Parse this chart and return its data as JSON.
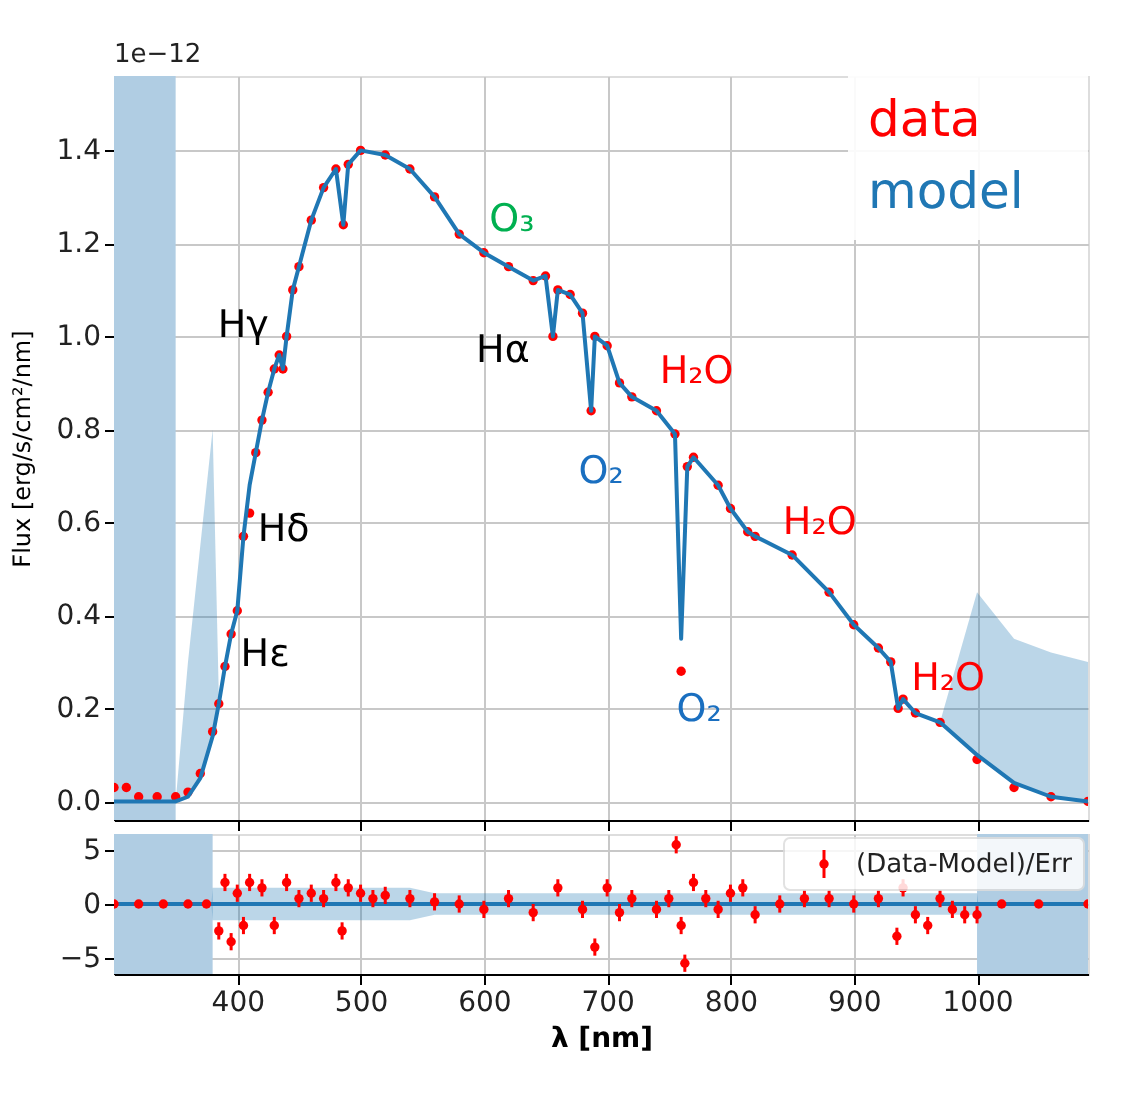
{
  "chart_data": [
    {
      "type": "scatter",
      "ylabel": "Flux [erg/s/cm²/nm]",
      "xlim": [
        300,
        1090
      ],
      "ylim": [
        -0.04,
        1.56
      ],
      "xticks": [
        400,
        500,
        600,
        700,
        800,
        900,
        1000
      ],
      "yticks": [
        {
          "value": 0,
          "label": "0.0"
        },
        0.2,
        0.4,
        0.6,
        0.8,
        {
          "value": 1,
          "label": "1.0"
        },
        1.2,
        1.4
      ],
      "tick_labels": "y",
      "grid": true,
      "legend": "top right",
      "x": [
        300,
        310,
        320,
        335,
        350,
        360,
        370,
        380,
        385,
        390,
        395,
        400,
        405,
        410,
        415,
        420,
        425,
        430,
        434,
        437,
        440,
        445,
        450,
        460,
        470,
        480,
        486,
        490,
        500,
        520,
        540,
        560,
        580,
        600,
        620,
        640,
        650,
        656,
        660,
        670,
        680,
        687,
        690,
        700,
        710,
        720,
        740,
        755,
        760,
        765,
        770,
        790,
        800,
        814,
        820,
        850,
        880,
        900,
        920,
        930,
        936,
        940,
        950,
        970,
        1000,
        1030,
        1060,
        1090
      ],
      "series": [
        {
          "name": "data",
          "marker": "circle",
          "color": "#ff0000",
          "values": [
            0.03,
            0.03,
            0.01,
            0.01,
            0.01,
            0.02,
            0.06,
            0.15,
            0.21,
            0.29,
            0.36,
            0.41,
            0.57,
            0.62,
            0.75,
            0.82,
            0.88,
            0.93,
            0.96,
            0.93,
            1.0,
            1.1,
            1.15,
            1.25,
            1.32,
            1.36,
            1.24,
            1.37,
            1.4,
            1.39,
            1.36,
            1.3,
            1.22,
            1.18,
            1.15,
            1.12,
            1.13,
            1.0,
            1.1,
            1.09,
            1.05,
            0.84,
            1.0,
            0.98,
            0.9,
            0.87,
            0.84,
            0.79,
            0.28,
            0.72,
            0.74,
            0.68,
            0.63,
            0.58,
            0.57,
            0.53,
            0.45,
            0.38,
            0.33,
            0.3,
            0.2,
            0.22,
            0.19,
            0.17,
            0.09,
            0.03,
            0.01,
            0.0
          ]
        },
        {
          "name": "model",
          "type": "line",
          "color": "#1f77b4",
          "values": [
            0.0,
            0.0,
            0.0,
            0.0,
            0.0,
            0.01,
            0.05,
            0.14,
            0.21,
            0.29,
            0.36,
            0.41,
            0.57,
            0.68,
            0.75,
            0.82,
            0.88,
            0.93,
            0.96,
            0.93,
            1.0,
            1.1,
            1.15,
            1.25,
            1.32,
            1.36,
            1.24,
            1.37,
            1.4,
            1.39,
            1.36,
            1.3,
            1.22,
            1.18,
            1.15,
            1.12,
            1.13,
            1.0,
            1.1,
            1.09,
            1.05,
            0.84,
            1.0,
            0.98,
            0.9,
            0.87,
            0.84,
            0.79,
            0.35,
            0.72,
            0.74,
            0.68,
            0.63,
            0.58,
            0.57,
            0.53,
            0.45,
            0.38,
            0.33,
            0.3,
            0.2,
            0.22,
            0.19,
            0.17,
            0.1,
            0.04,
            0.01,
            0.0
          ],
          "lower": [
            0.0,
            0.0,
            0.0,
            0.0,
            0.0,
            0.01,
            0.05,
            0.14,
            0.21,
            0.29,
            0.36,
            0.41,
            0.57,
            0.68,
            0.75,
            0.82,
            0.88,
            0.93,
            0.96,
            0.93,
            1.0,
            1.1,
            1.15,
            1.25,
            1.32,
            1.36,
            1.24,
            1.37,
            1.4,
            1.39,
            1.36,
            1.3,
            1.22,
            1.18,
            1.15,
            1.12,
            1.13,
            1.0,
            1.1,
            1.09,
            1.05,
            0.84,
            1.0,
            0.98,
            0.9,
            0.87,
            0.84,
            0.79,
            0.35,
            0.72,
            0.74,
            0.68,
            0.63,
            0.58,
            0.57,
            0.53,
            0.45,
            0.38,
            0.33,
            0.3,
            0.2,
            0.22,
            0.19,
            0.17,
            0.1,
            0.04,
            0.01,
            0.0
          ],
          "upper": [
            0.0,
            0.0,
            0.0,
            0.0,
            0.0,
            0.3,
            0.55,
            0.8,
            0.23,
            0.29,
            0.36,
            0.41,
            0.57,
            0.68,
            0.75,
            0.82,
            0.88,
            0.93,
            0.96,
            0.93,
            1.0,
            1.1,
            1.15,
            1.25,
            1.32,
            1.36,
            1.24,
            1.37,
            1.4,
            1.39,
            1.36,
            1.3,
            1.22,
            1.18,
            1.15,
            1.12,
            1.13,
            1.0,
            1.1,
            1.09,
            1.05,
            0.84,
            1.0,
            0.98,
            0.9,
            0.87,
            0.84,
            0.79,
            0.35,
            0.72,
            0.74,
            0.68,
            0.63,
            0.58,
            0.57,
            0.53,
            0.45,
            0.38,
            0.33,
            0.3,
            0.2,
            0.22,
            0.19,
            0.17,
            0.45,
            0.35,
            0.32,
            0.3
          ]
        }
      ],
      "bands": [
        {
          "axis": "x",
          "from": 300,
          "to": 350,
          "color": "#b0cde3"
        }
      ],
      "annotations": [
        "1e−12",
        {
          "text": "Hγ",
          "x": 434,
          "y": 0.96
        },
        {
          "text": "Hδ",
          "x": 410,
          "y": 0.68
        },
        {
          "text": "Hε",
          "x": 395,
          "y": 0.36
        },
        {
          "text": "Hα",
          "x": 656,
          "y": 1.0
        },
        {
          "text": "O₃",
          "x": 600,
          "y": 1.18
        },
        {
          "text": "O₂",
          "x": 687,
          "y": 0.84
        },
        {
          "text": "O₂",
          "x": 760,
          "y": 0.35
        },
        {
          "text": "H₂O",
          "x": 740,
          "y": 0.84
        },
        {
          "text": "H₂O",
          "x": 814,
          "y": 0.58
        },
        {
          "text": "H₂O",
          "x": 936,
          "y": 0.2
        }
      ]
    },
    {
      "type": "scatter",
      "xlabel": "λ [nm]",
      "xlim": [
        300,
        1090
      ],
      "ylim": [
        -6.5,
        6.5
      ],
      "xticks": [
        400,
        500,
        600,
        700,
        800,
        900,
        1000
      ],
      "yticks": [
        {
          "value": -5,
          "label": "−5"
        },
        0,
        5
      ],
      "grid": true,
      "legend": "top right",
      "x": [
        300,
        320,
        340,
        360,
        375,
        385,
        390,
        395,
        400,
        405,
        410,
        420,
        430,
        440,
        450,
        460,
        470,
        480,
        485,
        490,
        500,
        510,
        520,
        540,
        560,
        580,
        600,
        620,
        640,
        660,
        680,
        690,
        700,
        710,
        720,
        740,
        750,
        756,
        760,
        763,
        770,
        780,
        790,
        800,
        810,
        820,
        840,
        860,
        880,
        900,
        920,
        935,
        940,
        950,
        960,
        970,
        980,
        990,
        1000,
        1020,
        1050,
        1090
      ],
      "series": [
        {
          "type": "line",
          "color": "#1f77b4",
          "x": [
            300,
            379,
            380,
            540,
            560,
            1000,
            1001,
            1090
          ],
          "values": [
            0,
            0,
            0,
            0,
            0,
            0,
            0,
            0
          ],
          "lower": [
            0,
            0,
            -1.5,
            -1.5,
            -1,
            -1,
            0,
            0
          ],
          "upper": [
            0,
            0,
            1.5,
            1.5,
            1,
            1,
            0,
            0
          ]
        },
        {
          "name": "(Data-Model)/Err",
          "marker": "circle",
          "color": "#ff0000",
          "values": [
            0,
            0,
            0,
            0,
            0,
            -2.5,
            2,
            -3.5,
            1,
            -2,
            2,
            1.5,
            -2,
            2,
            0.5,
            1,
            0.5,
            2,
            -2.5,
            1.5,
            1,
            0.5,
            0.8,
            0.5,
            0.2,
            0,
            -0.5,
            0.5,
            -0.8,
            1.5,
            -0.5,
            -4,
            1.5,
            -0.8,
            0.5,
            -0.5,
            0.5,
            5.5,
            -2,
            -5.5,
            2,
            0.5,
            -0.5,
            1,
            1.5,
            -1,
            0,
            0.5,
            0.5,
            0,
            0.5,
            -3,
            1.5,
            -1,
            -2,
            0.5,
            -0.5,
            -1,
            -1,
            0,
            0,
            0
          ],
          "errors": [
            null,
            null,
            null,
            null,
            null,
            0.8,
            0.8,
            0.8,
            0.8,
            0.8,
            0.8,
            0.8,
            0.8,
            0.8,
            0.8,
            0.8,
            0.8,
            0.8,
            0.8,
            0.8,
            0.8,
            0.8,
            0.8,
            0.8,
            0.8,
            0.8,
            0.8,
            0.8,
            0.8,
            0.8,
            0.8,
            0.8,
            0.8,
            0.8,
            0.8,
            0.8,
            0.8,
            0.8,
            0.8,
            0.8,
            0.8,
            0.8,
            0.8,
            0.8,
            0.8,
            0.8,
            0.8,
            0.8,
            0.8,
            0.8,
            0.8,
            0.8,
            0.8,
            0.8,
            0.8,
            0.8,
            0.8,
            0.8,
            0.8,
            null,
            null,
            null
          ]
        }
      ],
      "bands": [
        {
          "axis": "x",
          "from": 300,
          "to": 380,
          "color": "#b0cde3"
        },
        {
          "axis": "x",
          "from": 1000,
          "to": 1090,
          "color": "#b0cde3"
        }
      ]
    }
  ]
}
